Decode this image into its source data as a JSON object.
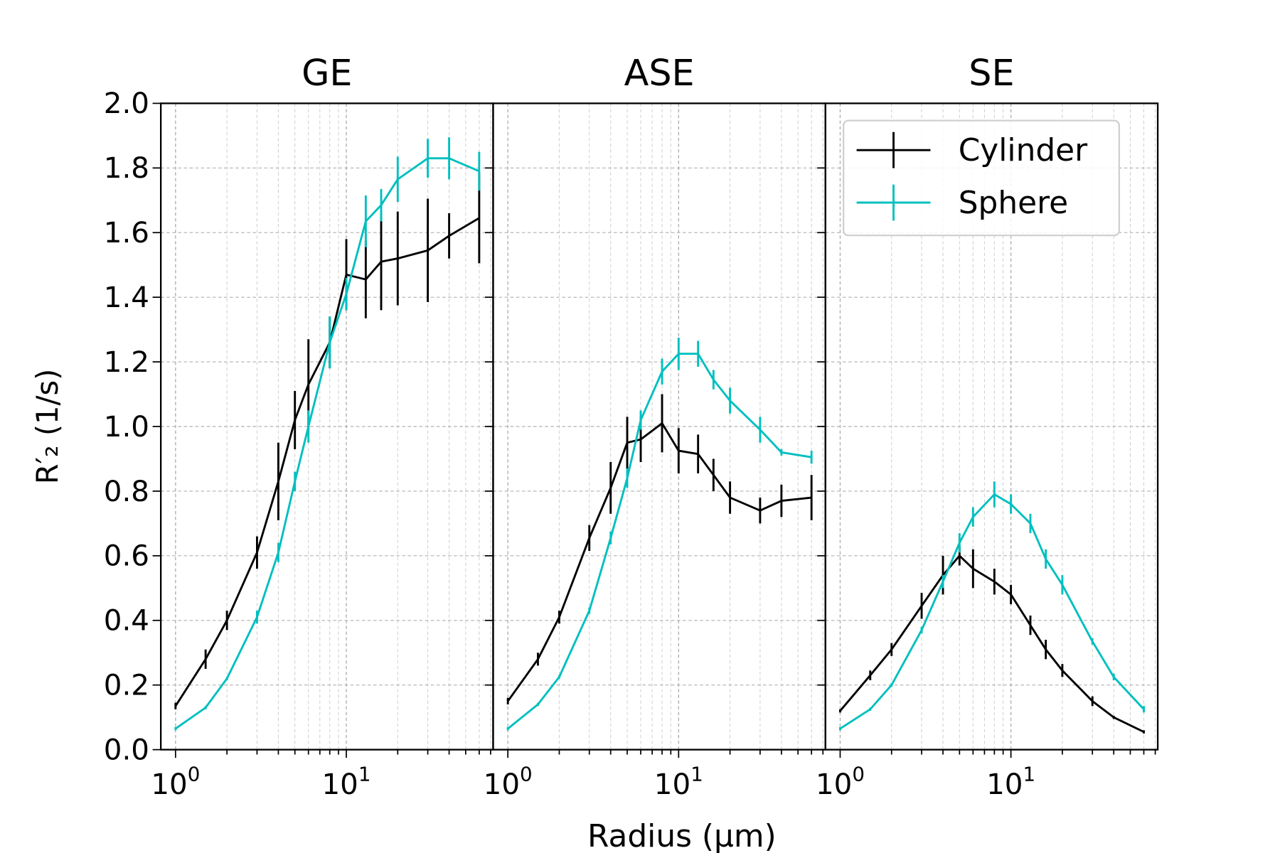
{
  "chart_data": {
    "type": "line",
    "xlabel": "Radius (μm)",
    "ylabel": "R′₂ (1/s)",
    "xscale": "log",
    "xlim": [
      0.82,
      72.4
    ],
    "ylim": [
      0,
      2.0
    ],
    "yticks": [
      "0.0",
      "0.2",
      "0.4",
      "0.6",
      "0.8",
      "1.0",
      "1.2",
      "1.4",
      "1.6",
      "1.8",
      "2.0"
    ],
    "xtick_labels": [
      {
        "base": "10",
        "exp": "0",
        "value": 1
      },
      {
        "base": "10",
        "exp": "1",
        "value": 10
      }
    ],
    "grid": true,
    "legend": {
      "placement": "upper-right of third panel",
      "entries": [
        "Cylinder",
        "Sphere"
      ]
    },
    "colors": {
      "Cylinder": "#000000",
      "Sphere": "#00bfbf"
    },
    "x": [
      1,
      1.5,
      2,
      3,
      4,
      5,
      6,
      8,
      10,
      13,
      16,
      20,
      30,
      40,
      60
    ],
    "panels": [
      {
        "title": "GE",
        "series": [
          {
            "name": "Cylinder",
            "values": [
              0.135,
              0.28,
              0.4,
              0.61,
              0.83,
              1.02,
              1.13,
              1.26,
              1.47,
              1.455,
              1.51,
              1.52,
              1.545,
              1.59,
              1.645
            ],
            "errors": [
              0.01,
              0.03,
              0.03,
              0.05,
              0.12,
              0.09,
              0.14,
              0.08,
              0.11,
              0.12,
              0.15,
              0.145,
              0.16,
              0.07,
              0.14
            ]
          },
          {
            "name": "Sphere",
            "values": [
              0.065,
              0.13,
              0.22,
              0.41,
              0.61,
              0.83,
              1.0,
              1.26,
              1.41,
              1.635,
              1.685,
              1.765,
              1.83,
              1.83,
              1.79
            ],
            "errors": [
              0.005,
              0.005,
              0.005,
              0.02,
              0.03,
              0.03,
              0.05,
              0.08,
              0.05,
              0.08,
              0.05,
              0.07,
              0.06,
              0.065,
              0.06
            ]
          }
        ]
      },
      {
        "title": "ASE",
        "series": [
          {
            "name": "Cylinder",
            "values": [
              0.15,
              0.28,
              0.41,
              0.655,
              0.81,
              0.95,
              0.96,
              1.01,
              0.925,
              0.915,
              0.85,
              0.78,
              0.74,
              0.77,
              0.78
            ],
            "errors": [
              0.01,
              0.02,
              0.02,
              0.04,
              0.08,
              0.08,
              0.07,
              0.09,
              0.07,
              0.06,
              0.05,
              0.05,
              0.04,
              0.05,
              0.07
            ]
          },
          {
            "name": "Sphere",
            "values": [
              0.065,
              0.14,
              0.225,
              0.43,
              0.655,
              0.84,
              1.02,
              1.17,
              1.225,
              1.225,
              1.145,
              1.08,
              0.99,
              0.92,
              0.905
            ],
            "errors": [
              0.005,
              0.005,
              0.005,
              0.01,
              0.02,
              0.03,
              0.03,
              0.04,
              0.05,
              0.04,
              0.03,
              0.04,
              0.04,
              0.01,
              0.02
            ]
          }
        ]
      },
      {
        "title": "SE",
        "series": [
          {
            "name": "Cylinder",
            "values": [
              0.12,
              0.23,
              0.31,
              0.445,
              0.54,
              0.6,
              0.56,
              0.52,
              0.48,
              0.385,
              0.31,
              0.245,
              0.15,
              0.1,
              0.055
            ],
            "errors": [
              0.005,
              0.015,
              0.02,
              0.04,
              0.06,
              0.03,
              0.06,
              0.04,
              0.03,
              0.03,
              0.03,
              0.02,
              0.015,
              0.005,
              0.005
            ]
          },
          {
            "name": "Sphere",
            "values": [
              0.065,
              0.125,
              0.2,
              0.37,
              0.52,
              0.64,
              0.72,
              0.79,
              0.76,
              0.7,
              0.59,
              0.51,
              0.335,
              0.225,
              0.125
            ],
            "errors": [
              0.005,
              0.005,
              0.005,
              0.01,
              0.02,
              0.03,
              0.03,
              0.04,
              0.03,
              0.03,
              0.03,
              0.03,
              0.01,
              0.01,
              0.01
            ]
          }
        ]
      }
    ]
  }
}
